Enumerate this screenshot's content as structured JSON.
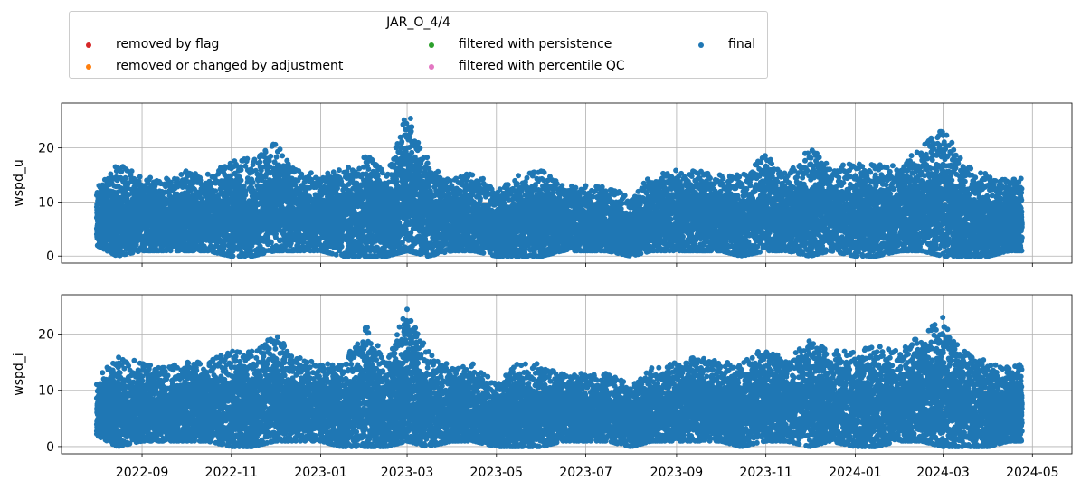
{
  "legend": {
    "title": "JAR_O_4/4",
    "entries": [
      {
        "label": "removed by flag",
        "color": "#d62728"
      },
      {
        "label": "removed or changed by adjustment",
        "color": "#ff7f0e"
      },
      {
        "label": "filtered with persistence",
        "color": "#2ca02c"
      },
      {
        "label": "filtered with percentile QC",
        "color": "#e377c2"
      },
      {
        "label": "final",
        "color": "#1f77b4"
      }
    ]
  },
  "chart_data": [
    {
      "type": "scatter",
      "ylabel": "wspd_u",
      "xlim": [
        "2022-07-08",
        "2024-05-28"
      ],
      "ylim": [
        -1.3,
        28.3
      ],
      "yticks": [
        0,
        10,
        20
      ],
      "grid": true,
      "series": [
        {
          "name": "final",
          "color": "#1f77b4",
          "x": [
            "2022-08-01",
            "2022-08-15",
            "2022-09-01",
            "2022-09-15",
            "2022-10-01",
            "2022-10-15",
            "2022-11-01",
            "2022-11-15",
            "2022-12-01",
            "2022-12-15",
            "2023-01-01",
            "2023-01-15",
            "2023-02-01",
            "2023-02-15",
            "2023-03-01",
            "2023-03-15",
            "2023-04-01",
            "2023-04-15",
            "2023-05-01",
            "2023-05-15",
            "2023-06-01",
            "2023-06-15",
            "2023-07-01",
            "2023-07-15",
            "2023-08-01",
            "2023-08-15",
            "2023-09-01",
            "2023-09-15",
            "2023-10-01",
            "2023-10-15",
            "2023-11-01",
            "2023-11-15",
            "2023-12-01",
            "2023-12-15",
            "2024-01-01",
            "2024-01-15",
            "2024-02-01",
            "2024-02-15",
            "2024-03-01",
            "2024-03-15",
            "2024-04-01",
            "2024-04-15",
            "2024-04-24"
          ],
          "ymin": [
            2,
            0,
            1,
            1,
            1,
            1,
            0,
            0,
            1,
            1,
            1,
            0,
            0,
            0,
            1,
            0,
            1,
            1,
            0,
            0,
            0,
            1,
            1,
            1,
            0,
            1,
            1,
            1,
            1,
            0,
            1,
            1,
            0,
            1,
            0,
            0,
            1,
            1,
            0,
            0,
            0,
            1,
            1
          ],
          "ymax": [
            13,
            17,
            15,
            14,
            16,
            15,
            18,
            18,
            21,
            16,
            15,
            16,
            19,
            15,
            27,
            18,
            14,
            16,
            12,
            15,
            16,
            13,
            13,
            13,
            11,
            15,
            16,
            16,
            15,
            15,
            19,
            15,
            20,
            17,
            17,
            17,
            17,
            20,
            24,
            17,
            15,
            14,
            15
          ]
        }
      ]
    },
    {
      "type": "scatter",
      "ylabel": "wspd_i",
      "xlim": [
        "2022-07-08",
        "2024-05-28"
      ],
      "ylim": [
        -1.3,
        27.0
      ],
      "yticks": [
        0,
        10,
        20
      ],
      "xticks": [
        "2022-09",
        "2022-11",
        "2023-01",
        "2023-03",
        "2023-05",
        "2023-07",
        "2023-09",
        "2023-11",
        "2024-01",
        "2024-03",
        "2024-05"
      ],
      "grid": true,
      "series": [
        {
          "name": "final",
          "color": "#1f77b4",
          "x": [
            "2022-08-01",
            "2022-08-15",
            "2022-09-01",
            "2022-09-15",
            "2022-10-01",
            "2022-10-15",
            "2022-11-01",
            "2022-11-15",
            "2022-12-01",
            "2022-12-15",
            "2023-01-01",
            "2023-01-15",
            "2023-02-01",
            "2023-02-15",
            "2023-03-01",
            "2023-03-15",
            "2023-04-01",
            "2023-04-15",
            "2023-05-01",
            "2023-05-15",
            "2023-06-01",
            "2023-06-15",
            "2023-07-01",
            "2023-07-15",
            "2023-08-01",
            "2023-08-15",
            "2023-09-01",
            "2023-09-15",
            "2023-10-01",
            "2023-10-15",
            "2023-11-01",
            "2023-11-15",
            "2023-12-01",
            "2023-12-15",
            "2024-01-01",
            "2024-01-15",
            "2024-02-01",
            "2024-02-15",
            "2024-03-01",
            "2024-03-15",
            "2024-04-01",
            "2024-04-15",
            "2024-04-24"
          ],
          "ymin": [
            2,
            0,
            1,
            1,
            1,
            1,
            0,
            0,
            1,
            1,
            1,
            0,
            0,
            0,
            1,
            0,
            1,
            1,
            0,
            0,
            0,
            1,
            1,
            1,
            0,
            1,
            1,
            1,
            1,
            0,
            1,
            1,
            0,
            1,
            0,
            0,
            1,
            1,
            0,
            0,
            0,
            1,
            1
          ],
          "ymax": [
            12,
            16,
            15,
            14,
            15,
            15,
            17,
            17,
            20,
            16,
            15,
            15,
            22,
            15,
            25,
            17,
            14,
            15,
            11,
            15,
            15,
            13,
            13,
            13,
            11,
            14,
            15,
            16,
            15,
            15,
            18,
            15,
            20,
            17,
            17,
            18,
            17,
            20,
            23,
            17,
            15,
            14,
            15
          ]
        }
      ]
    }
  ]
}
